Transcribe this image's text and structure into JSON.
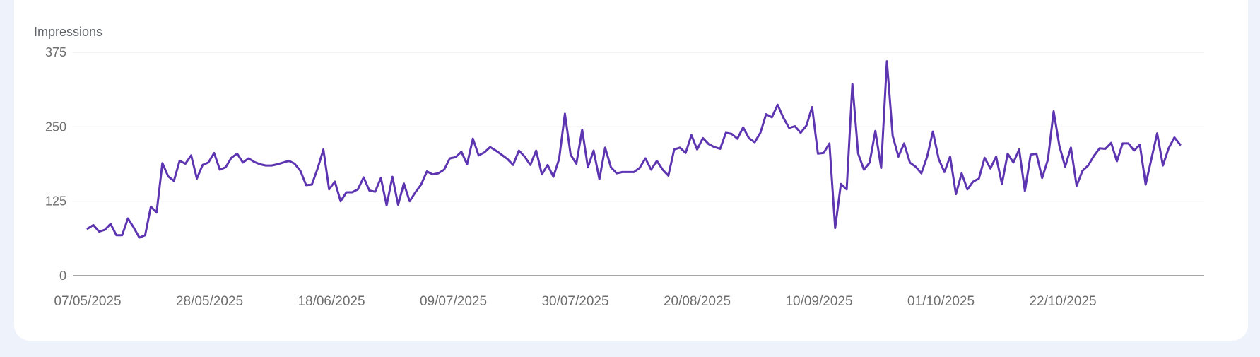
{
  "card": {
    "background": "#ffffff",
    "page_background": "#EEF2FB"
  },
  "chart_data": {
    "type": "line",
    "title": "",
    "xlabel": "",
    "ylabel": "Impressions",
    "ylim": [
      0,
      375
    ],
    "yticks": [
      0,
      125,
      250,
      375
    ],
    "ytick_labels": [
      "0",
      "125",
      "250",
      "375"
    ],
    "grid": true,
    "legend": null,
    "xtick_labels": [
      "07/05/2025",
      "28/05/2025",
      "18/06/2025",
      "09/07/2025",
      "30/07/2025",
      "20/08/2025",
      "10/09/2025",
      "01/10/2025",
      "22/10/2025"
    ],
    "x_start": "07/05/2025",
    "x_interval": "daily",
    "line_color": "#5E35B1",
    "series": [
      {
        "name": "Impressions",
        "values": [
          79,
          85,
          74,
          77,
          87,
          68,
          68,
          96,
          81,
          64,
          68,
          116,
          106,
          189,
          167,
          159,
          193,
          188,
          202,
          163,
          186,
          190,
          206,
          178,
          182,
          198,
          205,
          190,
          197,
          191,
          187,
          185,
          185,
          187,
          190,
          193,
          188,
          176,
          152,
          153,
          180,
          212,
          145,
          158,
          125,
          140,
          140,
          145,
          165,
          143,
          141,
          164,
          118,
          166,
          119,
          155,
          125,
          140,
          153,
          175,
          170,
          172,
          178,
          197,
          199,
          208,
          187,
          230,
          202,
          207,
          216,
          210,
          203,
          196,
          186,
          210,
          200,
          186,
          210,
          170,
          186,
          166,
          196,
          272,
          203,
          188,
          245,
          182,
          210,
          162,
          215,
          182,
          172,
          174,
          174,
          174,
          181,
          197,
          178,
          193,
          178,
          168,
          212,
          215,
          206,
          236,
          212,
          231,
          221,
          216,
          213,
          240,
          238,
          230,
          249,
          231,
          224,
          240,
          271,
          266,
          287,
          265,
          248,
          251,
          240,
          252,
          283,
          205,
          206,
          222,
          80,
          154,
          145,
          322,
          205,
          178,
          190,
          243,
          181,
          360,
          235,
          200,
          222,
          190,
          183,
          172,
          200,
          242,
          196,
          174,
          200,
          137,
          172,
          145,
          158,
          163,
          198,
          180,
          200,
          154,
          205,
          190,
          212,
          142,
          203,
          205,
          164,
          195,
          276,
          218,
          183,
          215,
          151,
          176,
          185,
          201,
          214,
          213,
          223,
          192,
          222,
          222,
          210,
          220,
          153,
          196,
          239,
          185,
          214,
          232,
          220
        ]
      }
    ]
  }
}
